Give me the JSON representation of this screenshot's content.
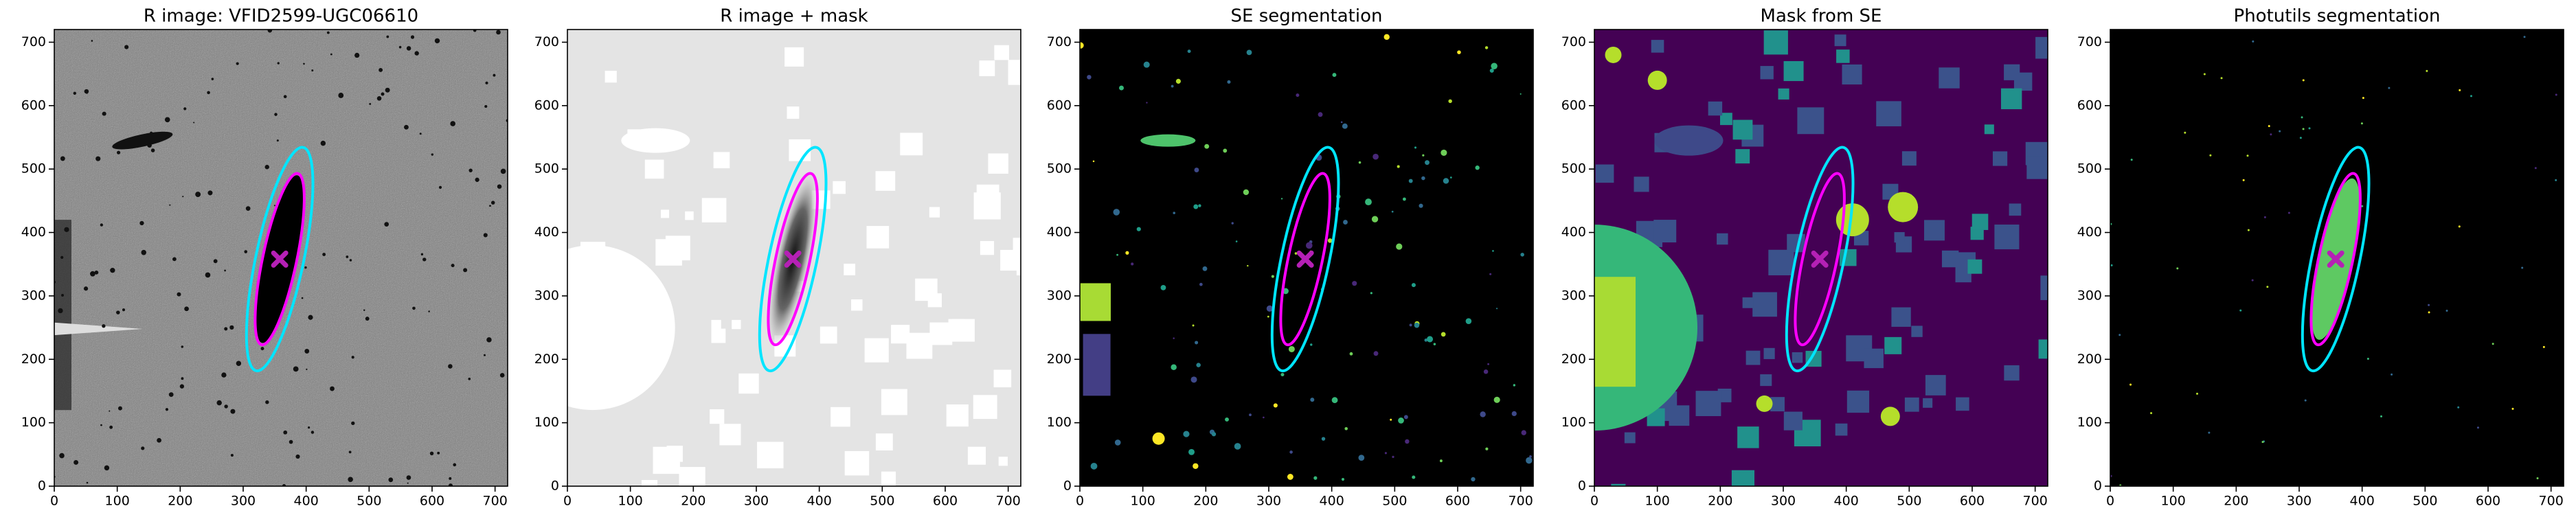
{
  "chart_data": [
    {
      "type": "image",
      "title": "R image: VFID2599-UGC06610",
      "background": "#808080",
      "xlim": [
        0,
        720
      ],
      "ylim": [
        0,
        720
      ],
      "xticks": [
        0,
        100,
        200,
        300,
        400,
        500,
        600,
        700
      ],
      "yticks": [
        0,
        100,
        200,
        300,
        400,
        500,
        600,
        700
      ],
      "ellipses": [
        {
          "x": 358,
          "y": 358,
          "a": 180,
          "b": 38,
          "angle": 78,
          "color": "#00e5ff"
        },
        {
          "x": 358,
          "y": 358,
          "a": 138,
          "b": 27,
          "angle": 78,
          "color": "#ff00ff"
        }
      ],
      "marker": {
        "x": 358,
        "y": 358,
        "color": "#b520b5"
      }
    },
    {
      "type": "image",
      "title": "R image + mask",
      "background": "#e4e4e4",
      "xlim": [
        0,
        720
      ],
      "ylim": [
        0,
        720
      ],
      "xticks": [
        0,
        100,
        200,
        300,
        400,
        500,
        600,
        700
      ],
      "yticks": [
        0,
        100,
        200,
        300,
        400,
        500,
        600,
        700
      ],
      "ellipses": [
        {
          "x": 358,
          "y": 358,
          "a": 180,
          "b": 38,
          "angle": 78,
          "color": "#00e5ff"
        },
        {
          "x": 358,
          "y": 358,
          "a": 138,
          "b": 27,
          "angle": 78,
          "color": "#ff00ff"
        }
      ],
      "marker": {
        "x": 358,
        "y": 358,
        "color": "#b520b5"
      }
    },
    {
      "type": "image",
      "title": "SE segmentation",
      "background": "#000000",
      "xlim": [
        0,
        720
      ],
      "ylim": [
        0,
        720
      ],
      "xticks": [
        0,
        100,
        200,
        300,
        400,
        500,
        600,
        700
      ],
      "yticks": [
        0,
        100,
        200,
        300,
        400,
        500,
        600,
        700
      ],
      "ellipses": [
        {
          "x": 358,
          "y": 358,
          "a": 180,
          "b": 38,
          "angle": 78,
          "color": "#00e5ff"
        },
        {
          "x": 358,
          "y": 358,
          "a": 138,
          "b": 27,
          "angle": 78,
          "color": "#ff00ff"
        }
      ],
      "marker": {
        "x": 358,
        "y": 358,
        "color": "#b520b5"
      }
    },
    {
      "type": "image",
      "title": "Mask from SE",
      "background": "#440154",
      "xlim": [
        0,
        720
      ],
      "ylim": [
        0,
        720
      ],
      "xticks": [
        0,
        100,
        200,
        300,
        400,
        500,
        600,
        700
      ],
      "yticks": [
        0,
        100,
        200,
        300,
        400,
        500,
        600,
        700
      ],
      "ellipses": [
        {
          "x": 358,
          "y": 358,
          "a": 180,
          "b": 38,
          "angle": 78,
          "color": "#00e5ff"
        },
        {
          "x": 358,
          "y": 358,
          "a": 138,
          "b": 27,
          "angle": 78,
          "color": "#ff00ff"
        }
      ],
      "marker": {
        "x": 358,
        "y": 358,
        "color": "#b520b5"
      }
    },
    {
      "type": "image",
      "title": "Photutils segmentation",
      "background": "#000000",
      "xlim": [
        0,
        720
      ],
      "ylim": [
        0,
        720
      ],
      "xticks": [
        0,
        100,
        200,
        300,
        400,
        500,
        600,
        700
      ],
      "yticks": [
        0,
        100,
        200,
        300,
        400,
        500,
        600,
        700
      ],
      "ellipses": [
        {
          "x": 358,
          "y": 358,
          "a": 180,
          "b": 38,
          "angle": 78,
          "color": "#00e5ff"
        },
        {
          "x": 358,
          "y": 358,
          "a": 138,
          "b": 27,
          "angle": 78,
          "color": "#ff00ff"
        }
      ],
      "marker": {
        "x": 358,
        "y": 358,
        "color": "#b520b5"
      }
    }
  ]
}
